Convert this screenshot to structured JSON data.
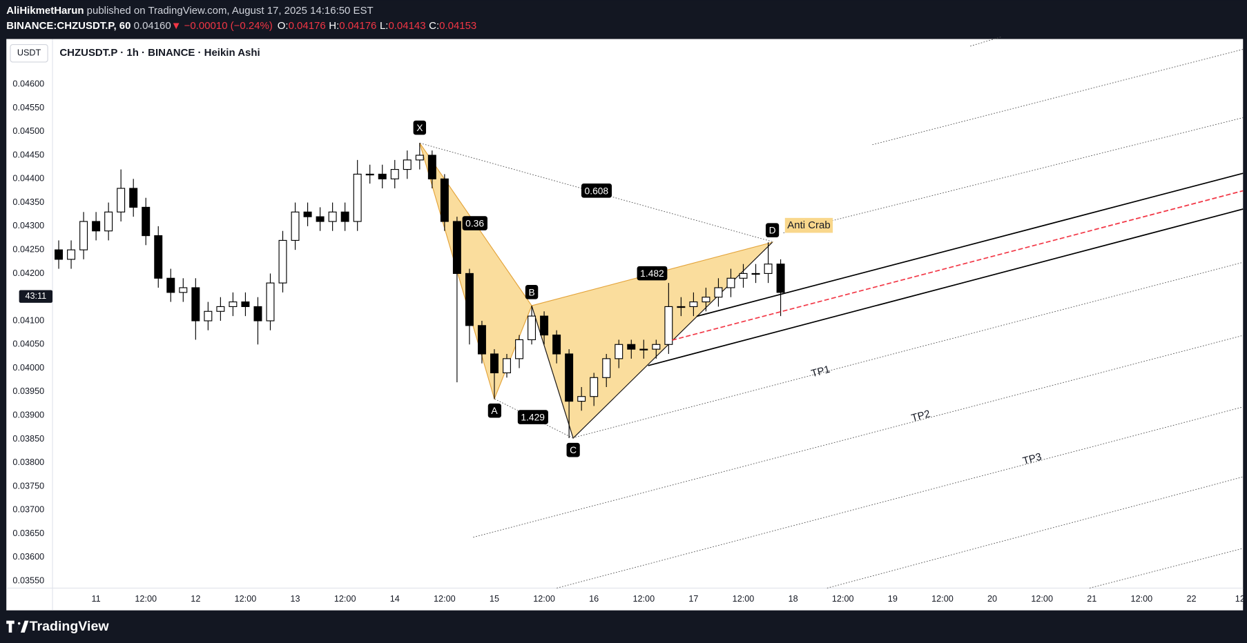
{
  "header": {
    "author": "AliHikmetHarun",
    "published": "published on TradingView.com, August 17, 2025 14:16:50 EST",
    "symbol": "BINANCE:CHZUSDT.P, 60",
    "last": "0.04160",
    "change": "▼ −0.00010 (−0.24%)",
    "ohlc": [
      {
        "label": "O:",
        "value": "0.04176"
      },
      {
        "label": "H:",
        "value": "0.04176"
      },
      {
        "label": "L:",
        "value": "0.04143"
      },
      {
        "label": "C:",
        "value": "0.04153"
      }
    ]
  },
  "toolbar": {
    "currency": "USDT",
    "legend": "CHZUSDT.P · 1h · BINANCE · Heikin Ashi",
    "countdown": "43:11"
  },
  "footer": {
    "brand": "TradingView"
  },
  "chart_data": {
    "type": "candlestick",
    "up_color": "#ffffff",
    "down_color": "#000000",
    "xlim": [
      -10.5,
      277.4
    ],
    "ylim": [
      0.03535,
      0.04694
    ],
    "xticks": [
      {
        "value": 0,
        "label": "11"
      },
      {
        "value": 12,
        "label": "12:00"
      },
      {
        "value": 24,
        "label": "12"
      },
      {
        "value": 36,
        "label": "12:00"
      },
      {
        "value": 48,
        "label": "13"
      },
      {
        "value": 60,
        "label": "12:00"
      },
      {
        "value": 72,
        "label": "14"
      },
      {
        "value": 84,
        "label": "12:00"
      },
      {
        "value": 96,
        "label": "15"
      },
      {
        "value": 108,
        "label": "12:00"
      },
      {
        "value": 120,
        "label": "16"
      },
      {
        "value": 132,
        "label": "12:00"
      },
      {
        "value": 144,
        "label": "17"
      },
      {
        "value": 156,
        "label": "12:00"
      },
      {
        "value": 168,
        "label": "18"
      },
      {
        "value": 180,
        "label": "12:00"
      },
      {
        "value": 192,
        "label": "19"
      },
      {
        "value": 204,
        "label": "12:00"
      },
      {
        "value": 216,
        "label": "20"
      },
      {
        "value": 228,
        "label": "12:00"
      },
      {
        "value": 240,
        "label": "21"
      },
      {
        "value": 252,
        "label": "12:00"
      },
      {
        "value": 264,
        "label": "22"
      },
      {
        "value": 276,
        "label": "12:"
      }
    ],
    "yticks": [
      {
        "value": 0.0355,
        "label": "0.03550"
      },
      {
        "value": 0.036,
        "label": "0.03600"
      },
      {
        "value": 0.0365,
        "label": "0.03650"
      },
      {
        "value": 0.037,
        "label": "0.03700"
      },
      {
        "value": 0.0375,
        "label": "0.03750"
      },
      {
        "value": 0.038,
        "label": "0.03800"
      },
      {
        "value": 0.0385,
        "label": "0.03850"
      },
      {
        "value": 0.039,
        "label": "0.03900"
      },
      {
        "value": 0.0395,
        "label": "0.03950"
      },
      {
        "value": 0.04,
        "label": "0.04000"
      },
      {
        "value": 0.0405,
        "label": "0.04050"
      },
      {
        "value": 0.041,
        "label": "0.04100"
      },
      {
        "value": 0.042,
        "label": "0.04200"
      },
      {
        "value": 0.0425,
        "label": "0.04250"
      },
      {
        "value": 0.043,
        "label": "0.04300"
      },
      {
        "value": 0.0435,
        "label": "0.04350"
      },
      {
        "value": 0.044,
        "label": "0.04400"
      },
      {
        "value": 0.0445,
        "label": "0.04450"
      },
      {
        "value": 0.045,
        "label": "0.04500"
      },
      {
        "value": 0.0455,
        "label": "0.04550"
      },
      {
        "value": 0.046,
        "label": "0.04600"
      }
    ],
    "x": [
      -9,
      -6,
      -3,
      0,
      3,
      6,
      9,
      12,
      15,
      18,
      21,
      24,
      27,
      30,
      33,
      36,
      39,
      42,
      45,
      48,
      51,
      54,
      57,
      60,
      63,
      66,
      69,
      72,
      75,
      78,
      81,
      84,
      87,
      90,
      93,
      96,
      99,
      102,
      105,
      108,
      111,
      114,
      117,
      120,
      123,
      126,
      129,
      132,
      135,
      138,
      141,
      144,
      147,
      150,
      153,
      156,
      159,
      162,
      165
    ],
    "open": [
      0.0425,
      0.0423,
      0.0425,
      0.0431,
      0.0429,
      0.0433,
      0.0438,
      0.0434,
      0.0428,
      0.0419,
      0.0416,
      0.0417,
      0.041,
      0.0412,
      0.0413,
      0.0414,
      0.0413,
      0.041,
      0.0418,
      0.0427,
      0.0433,
      0.0432,
      0.0431,
      0.0433,
      0.0431,
      0.0441,
      0.0441,
      0.044,
      0.0442,
      0.0444,
      0.0445,
      0.044,
      0.0431,
      0.042,
      0.0409,
      0.0403,
      0.0399,
      0.0402,
      0.0406,
      0.0411,
      0.0407,
      0.0403,
      0.0393,
      0.0394,
      0.0398,
      0.0402,
      0.0405,
      0.0404,
      0.0404,
      0.0405,
      0.0413,
      0.0413,
      0.0414,
      0.0415,
      0.0417,
      0.0419,
      0.042,
      0.042,
      0.0422
    ],
    "high": [
      0.0427,
      0.0427,
      0.0433,
      0.0433,
      0.0435,
      0.0442,
      0.044,
      0.0436,
      0.043,
      0.0421,
      0.0419,
      0.0419,
      0.0414,
      0.0415,
      0.0416,
      0.0416,
      0.0415,
      0.042,
      0.0429,
      0.0435,
      0.0435,
      0.0434,
      0.0435,
      0.0435,
      0.0444,
      0.0443,
      0.0443,
      0.0444,
      0.0446,
      0.04476,
      0.0446,
      0.0441,
      0.0432,
      0.0421,
      0.041,
      0.0404,
      0.0403,
      0.0407,
      0.04132,
      0.0412,
      0.0408,
      0.0404,
      0.0396,
      0.0399,
      0.0403,
      0.0406,
      0.0406,
      0.0406,
      0.0406,
      0.0418,
      0.0415,
      0.0416,
      0.0417,
      0.0419,
      0.0421,
      0.0422,
      0.0422,
      0.04266,
      0.0423
    ],
    "low": [
      0.0421,
      0.0421,
      0.0423,
      0.0427,
      0.0427,
      0.0431,
      0.0432,
      0.0426,
      0.0417,
      0.0414,
      0.0414,
      0.0406,
      0.0408,
      0.041,
      0.0411,
      0.0411,
      0.0405,
      0.0408,
      0.0416,
      0.0425,
      0.043,
      0.0429,
      0.0429,
      0.0429,
      0.0429,
      0.0439,
      0.0438,
      0.0438,
      0.044,
      0.0442,
      0.0438,
      0.0429,
      0.0397,
      0.0405,
      0.0401,
      0.03935,
      0.0398,
      0.04,
      0.0405,
      0.0405,
      0.0401,
      0.03852,
      0.0391,
      0.0392,
      0.0396,
      0.04,
      0.0402,
      0.0402,
      0.0402,
      0.0403,
      0.0411,
      0.0411,
      0.0412,
      0.0413,
      0.0415,
      0.0417,
      0.0418,
      0.0418,
      0.0411
    ],
    "close": [
      0.0423,
      0.0425,
      0.0431,
      0.0429,
      0.0433,
      0.0438,
      0.0434,
      0.0428,
      0.0419,
      0.0416,
      0.0417,
      0.041,
      0.0412,
      0.0413,
      0.0414,
      0.0413,
      0.041,
      0.0418,
      0.0427,
      0.0433,
      0.0432,
      0.0431,
      0.0433,
      0.0431,
      0.0441,
      0.0441,
      0.044,
      0.0442,
      0.0444,
      0.0445,
      0.044,
      0.0431,
      0.042,
      0.0409,
      0.0403,
      0.0399,
      0.0402,
      0.0406,
      0.0411,
      0.0407,
      0.0403,
      0.0393,
      0.0394,
      0.0398,
      0.0402,
      0.0405,
      0.0404,
      0.0404,
      0.0405,
      0.0413,
      0.0413,
      0.0414,
      0.0415,
      0.0417,
      0.0419,
      0.042,
      0.042,
      0.0422,
      0.0416
    ],
    "pattern": {
      "name": "Anti Crab",
      "color": "#f9d78c",
      "points": [
        {
          "label": "X",
          "x": 78,
          "y": 0.04476
        },
        {
          "label": "A",
          "x": 96,
          "y": 0.03935
        },
        {
          "label": "B",
          "x": 105,
          "y": 0.04132
        },
        {
          "label": "C",
          "x": 115,
          "y": 0.03852
        },
        {
          "label": "D",
          "x": 163,
          "y": 0.04266
        }
      ],
      "ratios": [
        0.36,
        1.429,
        0.608,
        1.482
      ]
    },
    "targets": [
      "TP1",
      "TP2",
      "TP3"
    ]
  }
}
